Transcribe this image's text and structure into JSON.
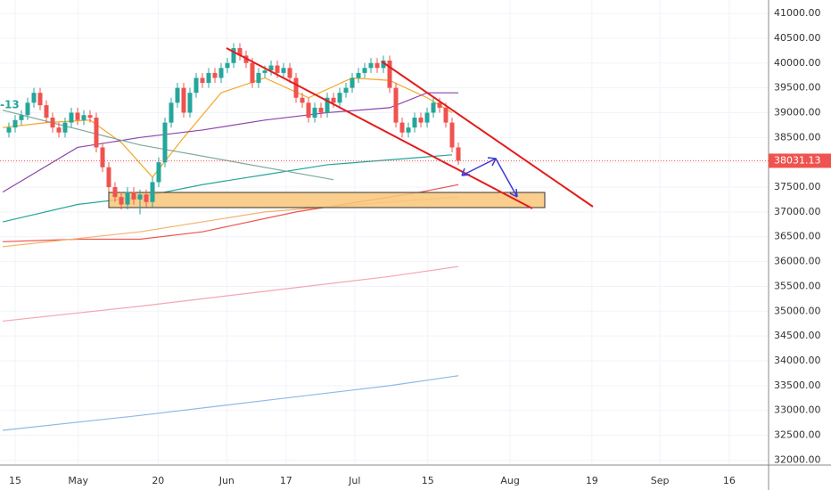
{
  "chart_data": {
    "type": "candlestick",
    "up_color": "#26a69a",
    "down_color": "#ef5350",
    "x": [
      -1,
      0,
      1,
      2,
      3,
      4,
      5,
      6,
      7,
      8,
      9,
      10,
      11,
      12,
      13,
      14,
      15,
      16,
      17,
      18,
      19,
      20,
      21,
      22,
      23,
      24,
      25,
      26,
      27,
      28,
      29,
      30,
      31,
      32,
      33,
      34,
      35,
      36,
      37,
      38,
      39,
      40,
      41,
      42,
      43,
      44,
      45,
      46,
      47,
      48,
      49,
      50,
      51,
      52,
      53,
      54,
      55,
      56,
      57,
      58,
      59,
      60,
      61,
      62,
      63,
      64,
      65,
      66,
      67,
      68,
      69,
      70,
      71
    ],
    "open": [
      38600,
      38700,
      38850,
      38950,
      39200,
      39400,
      39150,
      38900,
      38700,
      38600,
      38800,
      39000,
      38850,
      38950,
      38900,
      38300,
      37900,
      37500,
      37300,
      37150,
      37400,
      37250,
      37350,
      37200,
      37600,
      38000,
      38800,
      39200,
      39500,
      39000,
      39400,
      39700,
      39600,
      39800,
      39700,
      39900,
      40000,
      40300,
      40150,
      40000,
      39600,
      39800,
      39850,
      39950,
      39800,
      39900,
      39700,
      39300,
      39200,
      38900,
      39100,
      39000,
      39300,
      39200,
      39400,
      39500,
      39700,
      39800,
      39900,
      40000,
      39900,
      40050,
      39500,
      38800,
      38600,
      38700,
      38900,
      38800,
      39000,
      39200,
      39100,
      38800,
      38300
    ],
    "high": [
      38800,
      38950,
      39050,
      39300,
      39500,
      39500,
      39250,
      39000,
      38800,
      38900,
      39100,
      39100,
      39050,
      39050,
      39000,
      38400,
      38000,
      37600,
      37400,
      37500,
      37500,
      37450,
      37450,
      37700,
      38100,
      38900,
      39300,
      39600,
      39600,
      39500,
      39800,
      39800,
      39900,
      39900,
      40000,
      40100,
      40400,
      40400,
      40250,
      40100,
      39900,
      39950,
      40050,
      40050,
      40000,
      40000,
      39800,
      39400,
      39300,
      39200,
      39200,
      39400,
      39400,
      39500,
      39600,
      39800,
      39900,
      40000,
      40100,
      40100,
      40150,
      40150,
      39600,
      38900,
      38800,
      39000,
      39000,
      39100,
      39300,
      39300,
      39200,
      38900,
      38400
    ],
    "low": [
      38500,
      38600,
      38750,
      38850,
      39100,
      39050,
      38800,
      38600,
      38500,
      38500,
      38700,
      38750,
      38750,
      38800,
      38200,
      37800,
      37400,
      37200,
      37050,
      37050,
      37150,
      36950,
      37100,
      37100,
      37500,
      37900,
      38700,
      39100,
      38900,
      38900,
      39300,
      39500,
      39500,
      39600,
      39600,
      39800,
      39900,
      40050,
      39900,
      39500,
      39500,
      39700,
      39750,
      39700,
      39700,
      39600,
      39200,
      39100,
      38800,
      38800,
      38900,
      38900,
      39100,
      39100,
      39300,
      39400,
      39600,
      39700,
      39800,
      39800,
      39800,
      39400,
      38700,
      38500,
      38500,
      38600,
      38700,
      38700,
      38900,
      39000,
      38700,
      38200,
      37950
    ],
    "close": [
      38700,
      38850,
      38950,
      39200,
      39400,
      39150,
      38900,
      38700,
      38600,
      38800,
      39000,
      38850,
      38950,
      38900,
      38300,
      37900,
      37500,
      37300,
      37150,
      37400,
      37250,
      37350,
      37200,
      37600,
      38000,
      38800,
      39200,
      39500,
      39000,
      39400,
      39700,
      39600,
      39800,
      39700,
      39900,
      40000,
      40300,
      40150,
      40000,
      39600,
      39800,
      39850,
      39950,
      39800,
      39900,
      39700,
      39300,
      39200,
      38900,
      39100,
      39000,
      39300,
      39200,
      39400,
      39500,
      39700,
      39800,
      39900,
      40000,
      39900,
      40050,
      39500,
      38800,
      38600,
      38700,
      38900,
      38800,
      39000,
      39200,
      39100,
      38800,
      38300,
      38031
    ],
    "overlays": [
      {
        "color": "#f5a623",
        "x": [
          -2,
          5,
          12,
          17,
          22,
          27,
          33,
          40,
          47,
          54,
          60,
          66,
          70
        ],
        "values": [
          38700,
          38800,
          38850,
          38400,
          37700,
          38500,
          39400,
          39700,
          39300,
          39700,
          39650,
          39300,
          39000
        ]
      },
      {
        "color": "#8e44ad",
        "x": [
          -2,
          10,
          20,
          30,
          40,
          50,
          60,
          66,
          71
        ],
        "values": [
          37400,
          38300,
          38500,
          38650,
          38850,
          39000,
          39100,
          39400,
          39400
        ]
      },
      {
        "color": "#26a69a",
        "x": [
          -2,
          10,
          20,
          30,
          40,
          50,
          60,
          65,
          70
        ],
        "values": [
          36800,
          37150,
          37300,
          37550,
          37750,
          37950,
          38050,
          38100,
          38150
        ]
      },
      {
        "color": "#7fa99b",
        "x": [
          -2,
          20,
          51
        ],
        "values": [
          39050,
          38350,
          37650
        ]
      },
      {
        "color": "#ef5350",
        "x": [
          -2,
          10,
          20,
          30,
          45,
          55,
          65,
          71
        ],
        "values": [
          36400,
          36450,
          36450,
          36600,
          37000,
          37200,
          37400,
          37550
        ]
      },
      {
        "color": "#f6b26b",
        "x": [
          -2,
          20,
          40,
          60,
          71
        ],
        "values": [
          36300,
          36600,
          37000,
          37200,
          37300
        ]
      },
      {
        "color": "#f4a6b5",
        "x": [
          -2,
          20,
          40,
          60,
          71
        ],
        "values": [
          34800,
          35100,
          35400,
          35700,
          35900
        ]
      },
      {
        "color": "#8fb8e8",
        "x": [
          -2,
          20,
          40,
          60,
          71
        ],
        "values": [
          32600,
          32900,
          33200,
          33500,
          33700
        ]
      }
    ],
    "side_label": "-13",
    "last_price": 38031.13,
    "last_price_label": "38031.13",
    "xlim": [
      -2.43,
      120.71
    ],
    "ylim": [
      31900,
      41270
    ],
    "xticks": [
      {
        "value": 0,
        "label": "15"
      },
      {
        "value": 10.1,
        "label": "May"
      },
      {
        "value": 22.9,
        "label": "20"
      },
      {
        "value": 33.9,
        "label": "Jun"
      },
      {
        "value": 43.4,
        "label": "17"
      },
      {
        "value": 54.4,
        "label": "Jul"
      },
      {
        "value": 66.1,
        "label": "15"
      },
      {
        "value": 79.3,
        "label": "Aug"
      },
      {
        "value": 92.4,
        "label": "19"
      },
      {
        "value": 103.3,
        "label": "Sep"
      },
      {
        "value": 114.4,
        "label": "16"
      }
    ],
    "yticks": [
      {
        "value": 32000,
        "label": "32000.00"
      },
      {
        "value": 32500,
        "label": "32500.00"
      },
      {
        "value": 33000,
        "label": "33000.00"
      },
      {
        "value": 33500,
        "label": "33500.00"
      },
      {
        "value": 34000,
        "label": "34000.00"
      },
      {
        "value": 34500,
        "label": "34500.00"
      },
      {
        "value": 35000,
        "label": "35000.00"
      },
      {
        "value": 35500,
        "label": "35500.00"
      },
      {
        "value": 36000,
        "label": "36000.00"
      },
      {
        "value": 36500,
        "label": "36500.00"
      },
      {
        "value": 37000,
        "label": "37000.00"
      },
      {
        "value": 37500,
        "label": "37500.00"
      },
      {
        "value": 38000,
        "label": "38000.00"
      },
      {
        "value": 38500,
        "label": "38500.00"
      },
      {
        "value": 39000,
        "label": "39000.00"
      },
      {
        "value": 39500,
        "label": "39500.00"
      },
      {
        "value": 40000,
        "label": "40000.00"
      },
      {
        "value": 40500,
        "label": "40500.00"
      },
      {
        "value": 41000,
        "label": "41000.00"
      }
    ],
    "grid": true
  }
}
